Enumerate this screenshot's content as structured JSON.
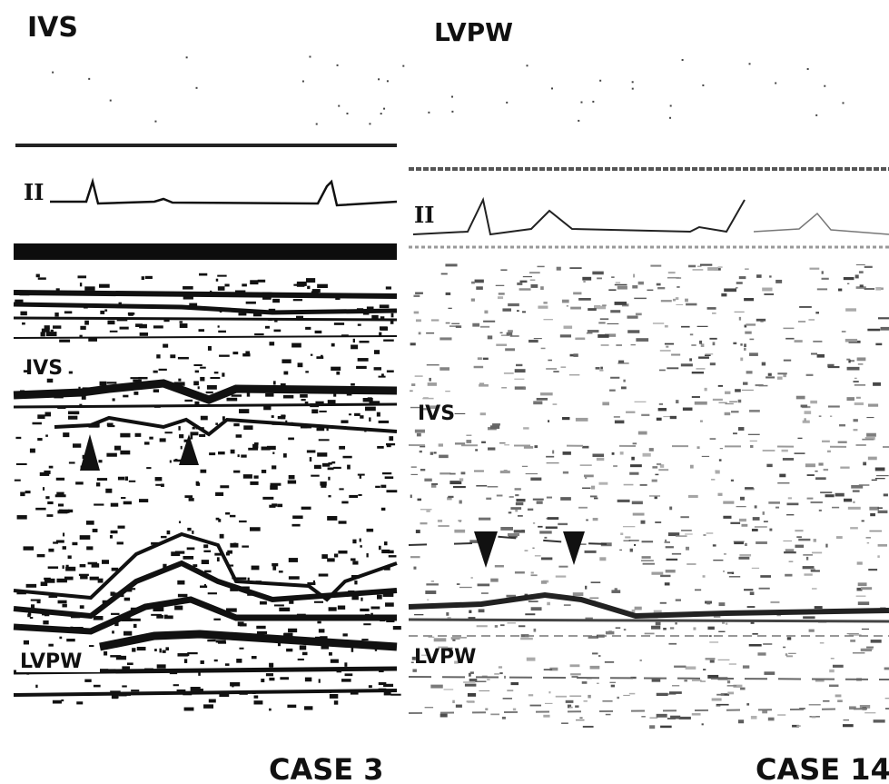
{
  "header": {
    "left": "IVS",
    "right": "LVPW"
  },
  "panels": [
    {
      "labels": {
        "ecg": "II",
        "ivs": "IVS",
        "lvpw": "LVPW"
      },
      "caption": "CASE 3"
    },
    {
      "labels": {
        "ecg": "II",
        "ivs": "IVS",
        "lvpw": "LVPW"
      },
      "caption": "CASE 14"
    }
  ]
}
